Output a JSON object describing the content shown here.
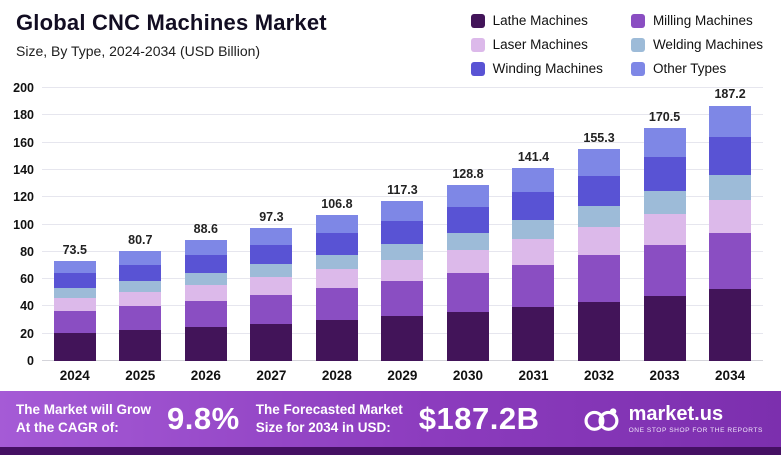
{
  "header": {
    "title": "Global CNC Machines Market",
    "subtitle": "Size, By Type, 2024-2034 (USD Billion)"
  },
  "legend": [
    {
      "label": "Lathe Machines",
      "color": "#421459"
    },
    {
      "label": "Milling Machines",
      "color": "#8a4ec2"
    },
    {
      "label": "Laser Machines",
      "color": "#dcb9ea"
    },
    {
      "label": "Welding Machines",
      "color": "#9dbbd8"
    },
    {
      "label": "Winding Machines",
      "color": "#5953d4"
    },
    {
      "label": "Other Types",
      "color": "#7e87e6"
    }
  ],
  "chart_data": {
    "type": "bar",
    "stacked": true,
    "title": "Global CNC Machines Market",
    "subtitle": "Size, By Type, 2024-2034 (USD Billion)",
    "xlabel": "",
    "ylabel": "USD Billion",
    "ylim": [
      0,
      200
    ],
    "yticks": [
      0,
      20,
      40,
      60,
      80,
      100,
      120,
      140,
      160,
      180,
      200
    ],
    "grid": true,
    "legend_position": "top-right",
    "categories": [
      "2024",
      "2025",
      "2026",
      "2027",
      "2028",
      "2029",
      "2030",
      "2031",
      "2032",
      "2033",
      "2034"
    ],
    "totals": [
      73.5,
      80.7,
      88.6,
      97.3,
      106.8,
      117.3,
      128.8,
      141.4,
      155.3,
      170.5,
      187.2
    ],
    "series": [
      {
        "name": "Lathe Machines",
        "color": "#421459",
        "values": [
          20.6,
          22.6,
          24.8,
          27.2,
          29.9,
          32.8,
          36.1,
          39.6,
          43.5,
          47.7,
          52.4
        ]
      },
      {
        "name": "Milling Machines",
        "color": "#8a4ec2",
        "values": [
          16.2,
          17.8,
          19.5,
          21.4,
          23.5,
          25.8,
          28.3,
          31.1,
          34.2,
          37.5,
          41.2
        ]
      },
      {
        "name": "Laser Machines",
        "color": "#dcb9ea",
        "values": [
          9.6,
          10.5,
          11.5,
          12.6,
          13.9,
          15.2,
          16.7,
          18.4,
          20.2,
          22.2,
          24.3
        ]
      },
      {
        "name": "Welding Machines",
        "color": "#9dbbd8",
        "values": [
          7.4,
          8.1,
          8.9,
          9.7,
          10.7,
          11.7,
          12.9,
          14.1,
          15.5,
          17.1,
          18.7
        ]
      },
      {
        "name": "Winding Machines",
        "color": "#5953d4",
        "values": [
          10.7,
          11.7,
          12.8,
          14.1,
          15.5,
          17.0,
          18.7,
          20.5,
          22.5,
          24.7,
          27.2
        ]
      },
      {
        "name": "Other Types",
        "color": "#7e87e6",
        "values": [
          9.0,
          10.0,
          11.1,
          12.3,
          13.3,
          14.8,
          16.1,
          17.7,
          19.4,
          21.3,
          23.4
        ]
      }
    ]
  },
  "banner": {
    "cagr_label_1": "The Market will Grow",
    "cagr_label_2": "At the CAGR of:",
    "cagr_value": "9.8%",
    "forecast_label_1": "The Forecasted Market",
    "forecast_label_2": "Size for 2034 in USD:",
    "forecast_value": "$187.2B",
    "logo_text": "market.us",
    "logo_tagline": "ONE STOP SHOP FOR THE REPORTS"
  }
}
